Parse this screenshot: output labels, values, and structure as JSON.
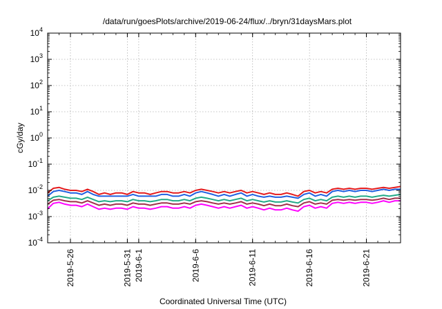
{
  "chart_data": {
    "type": "line",
    "title": "/data/run/goesPlots/archive/2019-06-24/flux/../bryn/31daysMars.plot",
    "xlabel": "Coordinated Universal Time (UTC)",
    "ylabel": "cGy/day",
    "yscale": "log",
    "ylim_exponents": [
      -4,
      4
    ],
    "y_ticks": [
      {
        "base": "10",
        "exp": "-4",
        "value": 0.0001
      },
      {
        "base": "10",
        "exp": "-3",
        "value": 0.001
      },
      {
        "base": "10",
        "exp": "-2",
        "value": 0.01
      },
      {
        "base": "10",
        "exp": "-1",
        "value": 0.1
      },
      {
        "base": "10",
        "exp": "0",
        "value": 1
      },
      {
        "base": "10",
        "exp": "1",
        "value": 10
      },
      {
        "base": "10",
        "exp": "2",
        "value": 100
      },
      {
        "base": "10",
        "exp": "3",
        "value": 1000
      },
      {
        "base": "10",
        "exp": "4",
        "value": 10000
      }
    ],
    "xlim": [
      "2019-05-24",
      "2019-06-24"
    ],
    "x_ticks": [
      "2019-5-26",
      "2019-5-31",
      "2019-6-1",
      "2019-6-6",
      "2019-6-11",
      "2019-6-16",
      "2019-6-21"
    ],
    "grid": true,
    "legend": "none",
    "series": [
      {
        "color": "#e41a1c",
        "values": [
          0.008,
          0.012,
          0.013,
          0.011,
          0.01,
          0.01,
          0.009,
          0.011,
          0.009,
          0.007,
          0.008,
          0.007,
          0.008,
          0.008,
          0.007,
          0.009,
          0.008,
          0.008,
          0.007,
          0.008,
          0.009,
          0.009,
          0.008,
          0.008,
          0.009,
          0.008,
          0.01,
          0.011,
          0.01,
          0.009,
          0.008,
          0.009,
          0.008,
          0.009,
          0.01,
          0.008,
          0.009,
          0.008,
          0.007,
          0.008,
          0.007,
          0.007,
          0.008,
          0.007,
          0.006,
          0.009,
          0.01,
          0.008,
          0.009,
          0.008,
          0.011,
          0.012,
          0.011,
          0.012,
          0.011,
          0.012,
          0.012,
          0.011,
          0.012,
          0.013,
          0.012,
          0.013,
          0.014
        ]
      },
      {
        "color": "#1f5fe0",
        "values": [
          0.006,
          0.009,
          0.01,
          0.009,
          0.008,
          0.008,
          0.007,
          0.009,
          0.007,
          0.006,
          0.006,
          0.006,
          0.006,
          0.006,
          0.006,
          0.007,
          0.006,
          0.006,
          0.006,
          0.006,
          0.007,
          0.007,
          0.006,
          0.006,
          0.007,
          0.006,
          0.008,
          0.009,
          0.008,
          0.007,
          0.006,
          0.007,
          0.006,
          0.007,
          0.008,
          0.006,
          0.007,
          0.006,
          0.0055,
          0.006,
          0.0055,
          0.0055,
          0.006,
          0.0055,
          0.005,
          0.007,
          0.008,
          0.006,
          0.007,
          0.006,
          0.009,
          0.01,
          0.009,
          0.01,
          0.009,
          0.01,
          0.01,
          0.009,
          0.01,
          0.011,
          0.01,
          0.011,
          0.011
        ]
      },
      {
        "color": "#22aa88",
        "values": [
          0.004,
          0.0055,
          0.006,
          0.0055,
          0.005,
          0.005,
          0.0045,
          0.0055,
          0.0045,
          0.0037,
          0.004,
          0.0037,
          0.004,
          0.004,
          0.0037,
          0.0045,
          0.004,
          0.004,
          0.0037,
          0.004,
          0.0045,
          0.0045,
          0.004,
          0.004,
          0.0045,
          0.004,
          0.005,
          0.0055,
          0.005,
          0.0045,
          0.004,
          0.0045,
          0.004,
          0.0045,
          0.005,
          0.004,
          0.0045,
          0.004,
          0.0036,
          0.004,
          0.0036,
          0.0036,
          0.004,
          0.0036,
          0.0033,
          0.0045,
          0.005,
          0.004,
          0.0045,
          0.004,
          0.0055,
          0.006,
          0.0055,
          0.006,
          0.0055,
          0.006,
          0.006,
          0.0055,
          0.006,
          0.0065,
          0.006,
          0.0065,
          0.007
        ]
      },
      {
        "color": "#a0304a",
        "values": [
          0.003,
          0.0042,
          0.0045,
          0.004,
          0.0037,
          0.0037,
          0.0033,
          0.004,
          0.0033,
          0.0027,
          0.003,
          0.0027,
          0.003,
          0.003,
          0.0027,
          0.0033,
          0.003,
          0.003,
          0.0027,
          0.003,
          0.0033,
          0.0033,
          0.003,
          0.003,
          0.0033,
          0.003,
          0.0037,
          0.004,
          0.0037,
          0.0033,
          0.003,
          0.0033,
          0.003,
          0.0033,
          0.0037,
          0.003,
          0.0033,
          0.003,
          0.0026,
          0.003,
          0.0026,
          0.0026,
          0.003,
          0.0026,
          0.0024,
          0.0033,
          0.0037,
          0.003,
          0.0033,
          0.003,
          0.0042,
          0.0045,
          0.0042,
          0.0045,
          0.0042,
          0.0045,
          0.0045,
          0.0042,
          0.0045,
          0.005,
          0.0045,
          0.005,
          0.005
        ]
      },
      {
        "color": "#ff00ff",
        "values": [
          0.002,
          0.0032,
          0.0035,
          0.003,
          0.0027,
          0.0027,
          0.0024,
          0.003,
          0.0024,
          0.0019,
          0.0021,
          0.0019,
          0.0021,
          0.0021,
          0.0019,
          0.0024,
          0.0021,
          0.0021,
          0.0019,
          0.0021,
          0.0024,
          0.0024,
          0.0021,
          0.0021,
          0.0024,
          0.0021,
          0.0027,
          0.003,
          0.0027,
          0.0024,
          0.0021,
          0.0024,
          0.0021,
          0.0024,
          0.0027,
          0.0021,
          0.0024,
          0.0021,
          0.0018,
          0.0021,
          0.0018,
          0.0018,
          0.0021,
          0.0018,
          0.0016,
          0.0024,
          0.0027,
          0.0021,
          0.0024,
          0.0021,
          0.0032,
          0.0035,
          0.0032,
          0.0035,
          0.0032,
          0.0035,
          0.0035,
          0.0032,
          0.0035,
          0.004,
          0.0035,
          0.004,
          0.004
        ]
      }
    ]
  }
}
